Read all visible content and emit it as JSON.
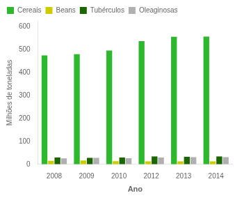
{
  "chart_data": {
    "type": "bar",
    "categories": [
      "2008",
      "2009",
      "2010",
      "2012",
      "2013",
      "2014"
    ],
    "series": [
      {
        "name": "Cereais",
        "color": "#2db82d",
        "values": [
          475,
          480,
          496,
          537,
          556,
          557
        ]
      },
      {
        "name": "Beans",
        "color": "#cccc00",
        "values": [
          15,
          17,
          14,
          13,
          13,
          13
        ]
      },
      {
        "name": "Tubérculos",
        "color": "#1a6600",
        "values": [
          30,
          28,
          30,
          34,
          33,
          34
        ]
      },
      {
        "name": "Oleaginosas",
        "color": "#b0b0b0",
        "values": [
          26,
          28,
          27,
          30,
          31,
          31
        ]
      }
    ],
    "xlabel": "Ano",
    "ylabel": "Milhões de toneladas",
    "ylim": [
      0,
      625
    ],
    "yticks": [
      0,
      100,
      200,
      300,
      400,
      500,
      600
    ],
    "grid": false,
    "legend": "upper left"
  }
}
